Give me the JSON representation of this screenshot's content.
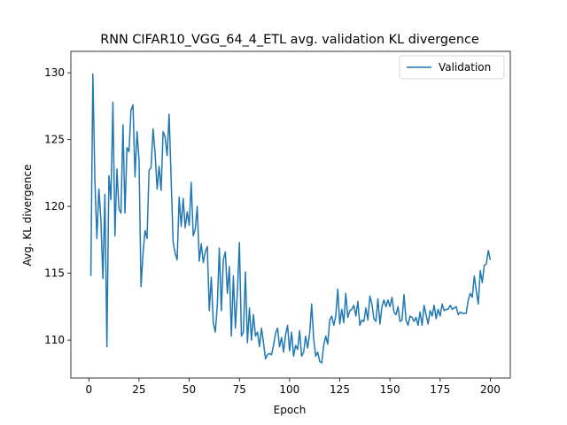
{
  "chart_data": {
    "type": "line",
    "title": "RNN CIFAR10_VGG_64_4_ETL avg. validation KL divergence",
    "xlabel": "Epoch",
    "ylabel": "Avg. KL divergence",
    "x": [
      1,
      2,
      3,
      4,
      5,
      6,
      7,
      8,
      9,
      10,
      11,
      12,
      13,
      14,
      15,
      16,
      17,
      18,
      19,
      20,
      21,
      22,
      23,
      24,
      25,
      26,
      27,
      28,
      29,
      30,
      31,
      32,
      33,
      34,
      35,
      36,
      37,
      38,
      39,
      40,
      41,
      42,
      43,
      44,
      45,
      46,
      47,
      48,
      49,
      50,
      51,
      52,
      53,
      54,
      55,
      56,
      57,
      58,
      59,
      60,
      61,
      62,
      63,
      64,
      65,
      66,
      67,
      68,
      69,
      70,
      71,
      72,
      73,
      74,
      75,
      76,
      77,
      78,
      79,
      80,
      81,
      82,
      83,
      84,
      85,
      86,
      87,
      88,
      89,
      90,
      91,
      92,
      93,
      94,
      95,
      96,
      97,
      98,
      99,
      100,
      101,
      102,
      103,
      104,
      105,
      106,
      107,
      108,
      109,
      110,
      111,
      112,
      113,
      114,
      115,
      116,
      117,
      118,
      119,
      120,
      121,
      122,
      123,
      124,
      125,
      126,
      127,
      128,
      129,
      130,
      131,
      132,
      133,
      134,
      135,
      136,
      137,
      138,
      139,
      140,
      141,
      142,
      143,
      144,
      145,
      146,
      147,
      148,
      149,
      150,
      151,
      152,
      153,
      154,
      155,
      156,
      157,
      158,
      159,
      160,
      161,
      162,
      163,
      164,
      165,
      166,
      167,
      168,
      169,
      170,
      171,
      172,
      173,
      174,
      175,
      176,
      177,
      178,
      179,
      180,
      181,
      182,
      183,
      184,
      185,
      186,
      187,
      188,
      189,
      190,
      191,
      192,
      193,
      194,
      195,
      196,
      197,
      198,
      199,
      200
    ],
    "series": [
      {
        "name": "Validation",
        "color": "#1f77b4",
        "values": [
          114.8,
          129.9,
          122,
          117.6,
          121.3,
          119,
          114.6,
          120.9,
          109.5,
          122.3,
          120.5,
          127.8,
          117.8,
          122.8,
          119.8,
          119.5,
          126.1,
          119.5,
          124.4,
          124.1,
          127.2,
          127.6,
          122.2,
          125.6,
          123.5,
          114,
          116.5,
          118.2,
          117.6,
          122.7,
          122.9,
          125.8,
          124,
          121.3,
          123,
          121.2,
          125.6,
          125.2,
          123.8,
          126.9,
          122,
          117.3,
          116.5,
          116,
          120.7,
          118.5,
          120.6,
          118.4,
          119.6,
          118.6,
          121.8,
          117.8,
          118.3,
          120,
          115.9,
          117.2,
          115.8,
          116.6,
          117,
          112.2,
          114.7,
          111.3,
          110.6,
          112.6,
          116.9,
          112.2,
          116,
          116.6,
          113.5,
          115.5,
          110.3,
          114.8,
          110.9,
          113.6,
          117.3,
          110.3,
          110.6,
          115.1,
          109.8,
          112.4,
          110,
          111.9,
          110.3,
          110.6,
          109.5,
          110.9,
          109.8,
          108.6,
          108.9,
          109,
          108.9,
          109.6,
          110.5,
          110.9,
          109.5,
          110.2,
          109.1,
          110.4,
          111.1,
          109.2,
          110.6,
          108.8,
          109.6,
          109.3,
          110.7,
          108.8,
          109.1,
          110.3,
          109.4,
          110.5,
          112.7,
          110.1,
          108.8,
          109.1,
          108.4,
          108.3,
          109.6,
          110.3,
          109.7,
          111.5,
          111.8,
          111.1,
          111.8,
          113.8,
          111.2,
          112.3,
          111.3,
          113.5,
          111.7,
          112.2,
          112.3,
          112.6,
          111.8,
          112.9,
          111.1,
          111.5,
          111.4,
          112.4,
          111.5,
          113.3,
          112.7,
          111.6,
          111.4,
          113.1,
          111.2,
          112.5,
          113,
          112.5,
          113,
          112.5,
          113.2,
          112.1,
          111.9,
          112.5,
          111.4,
          111.5,
          113.4,
          111.5,
          111.1,
          111.8,
          111.7,
          111.4,
          111.7,
          111.1,
          112.1,
          111.1,
          112.6,
          111.9,
          111.2,
          112.2,
          111.8,
          112.6,
          111.6,
          112.3,
          111.8,
          112.7,
          112.2,
          112.3,
          112.3,
          112.6,
          112.3,
          112.4,
          112.5,
          111.9,
          112.1,
          112,
          112,
          112,
          113,
          113.5,
          113.2,
          114.8,
          113.7,
          112.7,
          115.2,
          114.3,
          115.6,
          115.7,
          116.7,
          116
        ]
      }
    ],
    "xlim": [
      -8.95,
      209.95
    ],
    "xticks": [
      0,
      25,
      50,
      75,
      100,
      125,
      150,
      175,
      200
    ],
    "ylim": [
      107.16,
      131.6
    ],
    "yticks": [
      110,
      115,
      120,
      125,
      130
    ],
    "grid": false,
    "legend": "upper right"
  }
}
